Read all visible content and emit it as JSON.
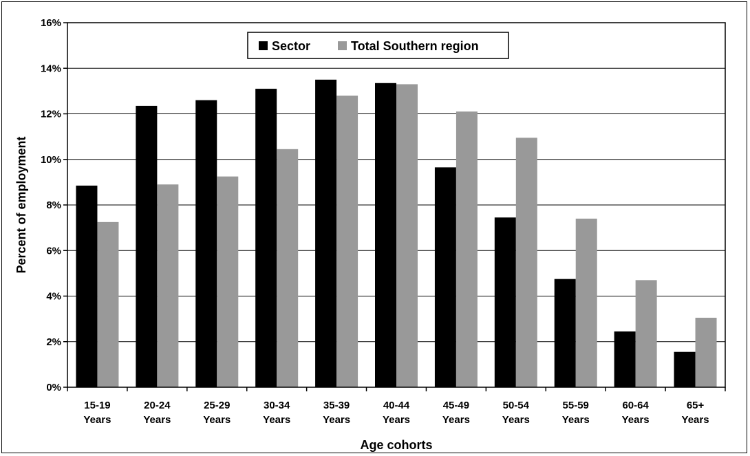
{
  "chart_data": {
    "type": "bar",
    "categories": [
      [
        "15-19",
        "Years"
      ],
      [
        "20-24",
        "Years"
      ],
      [
        "25-29",
        "Years"
      ],
      [
        "30-34",
        "Years"
      ],
      [
        "35-39",
        "Years"
      ],
      [
        "40-44",
        "Years"
      ],
      [
        "45-49",
        "Years"
      ],
      [
        "50-54",
        "Years"
      ],
      [
        "55-59",
        "Years"
      ],
      [
        "60-64",
        "Years"
      ],
      [
        "65+",
        "Years"
      ]
    ],
    "series": [
      {
        "name": "Sector",
        "color": "#000000",
        "values": [
          8.85,
          12.35,
          12.6,
          13.1,
          13.5,
          13.35,
          9.65,
          7.45,
          4.75,
          2.45,
          1.55
        ]
      },
      {
        "name": "Total Southern region",
        "color": "#999999",
        "values": [
          7.25,
          8.9,
          9.25,
          10.45,
          12.8,
          13.3,
          12.1,
          10.95,
          7.4,
          4.7,
          3.05
        ]
      }
    ],
    "xlabel": "Age cohorts",
    "ylabel": "Percent of employment",
    "ylim": [
      0,
      16
    ],
    "yticks": [
      "0%",
      "2%",
      "4%",
      "6%",
      "8%",
      "10%",
      "12%",
      "14%",
      "16%"
    ],
    "grid": true,
    "legend": "top-center"
  }
}
